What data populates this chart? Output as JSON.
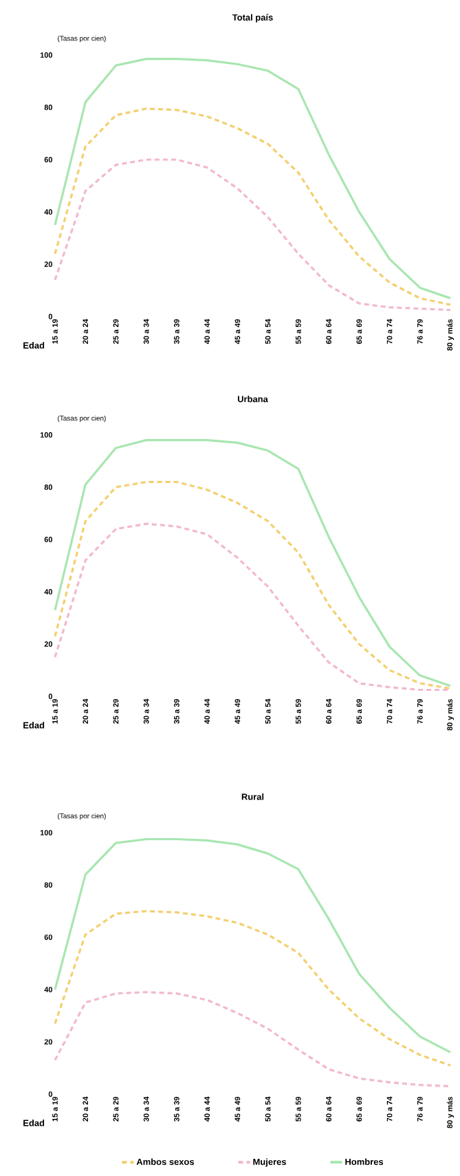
{
  "chart_data": [
    {
      "type": "line",
      "title": "Total país",
      "ylabel": "(Tasas por cien)",
      "xlabel": "Edad",
      "categories": [
        "15 a 19",
        "20 a 24",
        "25 a 29",
        "30 a 34",
        "35 a 39",
        "40 a 44",
        "45 a 49",
        "50 a 54",
        "55 a 59",
        "60 a 64",
        "65 a 69",
        "70 a 74",
        "76 a 79",
        "80 y más"
      ],
      "ylim": [
        0,
        100
      ],
      "yticks": [
        0,
        20,
        40,
        60,
        80,
        100
      ],
      "series": [
        {
          "color": "#f3cf6e",
          "line_style": "dashed",
          "values": [
            24,
            65,
            77,
            79.5,
            79,
            76.5,
            72,
            66,
            55,
            37,
            23,
            13,
            7,
            4.5
          ]
        },
        {
          "color": "#f2b8d0",
          "line_style": "dashed",
          "values": [
            14,
            48,
            58,
            60,
            60,
            57,
            49,
            38,
            24,
            12,
            5,
            3.5,
            3,
            2.5
          ]
        },
        {
          "color": "#a8e6b0",
          "line_style": "solid",
          "values": [
            35,
            82,
            96,
            98.5,
            98.5,
            98,
            96.5,
            94,
            87,
            62,
            40,
            22,
            11,
            7
          ]
        }
      ]
    },
    {
      "type": "line",
      "title": "Urbana",
      "ylabel": "(Tasas por cien)",
      "xlabel": "Edad",
      "categories": [
        "15 a 19",
        "20 a 24",
        "25 a 29",
        "30 a 34",
        "35 a 39",
        "40 a 44",
        "45 a 49",
        "50 a 54",
        "55 a 59",
        "60 a 64",
        "65 a 69",
        "70 a 74",
        "76 a 79",
        "80 y más"
      ],
      "ylim": [
        0,
        100
      ],
      "yticks": [
        0,
        20,
        40,
        60,
        80,
        100
      ],
      "series": [
        {
          "color": "#f3cf6e",
          "line_style": "dashed",
          "values": [
            23,
            67,
            80,
            82,
            82,
            79,
            74,
            67,
            55,
            35,
            20,
            10,
            5,
            3
          ]
        },
        {
          "color": "#f2b8d0",
          "line_style": "dashed",
          "values": [
            15,
            52,
            64,
            66,
            65,
            62,
            53,
            42,
            27,
            13,
            5,
            3.5,
            2.5,
            2.5
          ]
        },
        {
          "color": "#a8e6b0",
          "line_style": "solid",
          "values": [
            33,
            81,
            95,
            98,
            98,
            98,
            97,
            94,
            87,
            61,
            38,
            19,
            8,
            4
          ]
        }
      ]
    },
    {
      "type": "line",
      "title": "Rural",
      "ylabel": "(Tasas por cien)",
      "xlabel": "Edad",
      "categories": [
        "15 a 19",
        "20 a 24",
        "25 a 29",
        "30 a 34",
        "35 a 39",
        "40 a 44",
        "45 a 49",
        "50 a 54",
        "55 a 59",
        "60 a 64",
        "65 a 69",
        "70 a 74",
        "76 a 79",
        "80 y más"
      ],
      "ylim": [
        0,
        100
      ],
      "yticks": [
        0,
        20,
        40,
        60,
        80,
        100
      ],
      "legend": "bottom",
      "series": [
        {
          "name": "Ambos sexos",
          "color": "#f3cf6e",
          "line_style": "dashed",
          "values": [
            27,
            61,
            69,
            70,
            69.5,
            68,
            65.5,
            61,
            54,
            40,
            29,
            21,
            15,
            11
          ]
        },
        {
          "name": "Mujeres",
          "color": "#f2b8d0",
          "line_style": "dashed",
          "values": [
            13,
            35,
            38.5,
            39,
            38.5,
            36,
            31,
            25,
            17,
            9.5,
            6,
            4.5,
            3.5,
            3
          ]
        },
        {
          "name": "Hombres",
          "color": "#a8e6b0",
          "line_style": "solid",
          "values": [
            40,
            84,
            96,
            97.5,
            97.5,
            97,
            95.5,
            92,
            86,
            67,
            46,
            33,
            22,
            16
          ]
        }
      ]
    }
  ]
}
